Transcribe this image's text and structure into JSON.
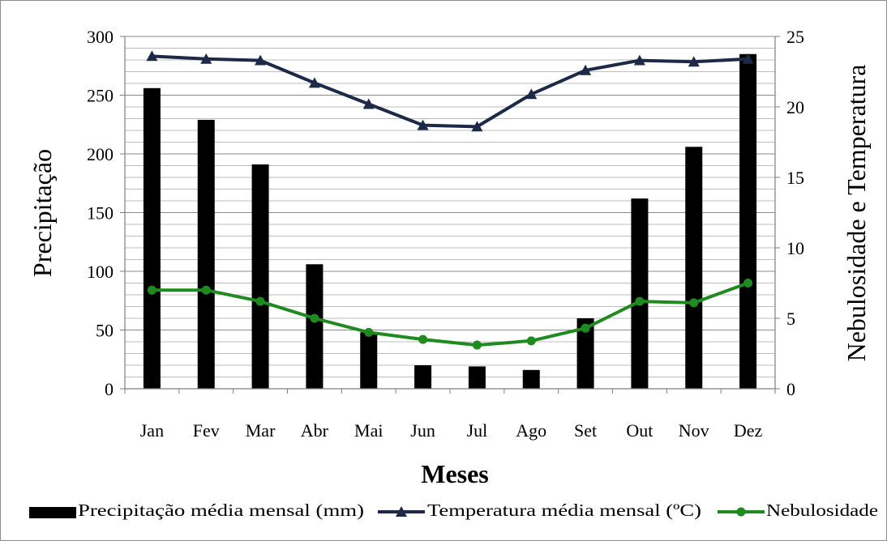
{
  "chart_data": {
    "type": "bar-line",
    "categories": [
      "Jan",
      "Fev",
      "Mar",
      "Abr",
      "Mai",
      "Jun",
      "Jul",
      "Ago",
      "Set",
      "Out",
      "Nov",
      "Dez"
    ],
    "xlabel": "Meses",
    "ylabel_left": "Precipitação",
    "ylabel_right": "Nebulosidade e Temperatura",
    "ylim_left": [
      0,
      300
    ],
    "ylim_right": [
      0,
      25
    ],
    "yticks_left": [
      "0",
      "50",
      "100",
      "150",
      "200",
      "250",
      "300"
    ],
    "yticks_right": [
      "0",
      "5",
      "10",
      "15",
      "20",
      "25"
    ],
    "grid": "horizontal",
    "legend_position": "bottom",
    "series": [
      {
        "name": "Precipitação média mensal (mm)",
        "type": "bar",
        "axis": "left",
        "color": "#000000",
        "values": [
          256,
          229,
          191,
          106,
          48,
          20,
          19,
          16,
          60,
          162,
          206,
          285
        ]
      },
      {
        "name": "Temperatura média mensal (ºC)",
        "type": "line",
        "marker": "triangle",
        "axis": "right",
        "color": "#1c2a48",
        "values": [
          23.6,
          23.4,
          23.3,
          21.7,
          20.2,
          18.7,
          18.6,
          20.9,
          22.6,
          23.3,
          23.2,
          23.4
        ]
      },
      {
        "name": "Nebulosidade",
        "type": "line",
        "marker": "circle",
        "axis": "right",
        "color": "#1f8a1f",
        "values": [
          7.0,
          7.0,
          6.2,
          5.0,
          4.0,
          3.5,
          3.1,
          3.4,
          4.3,
          6.2,
          6.1,
          7.5
        ]
      }
    ]
  }
}
